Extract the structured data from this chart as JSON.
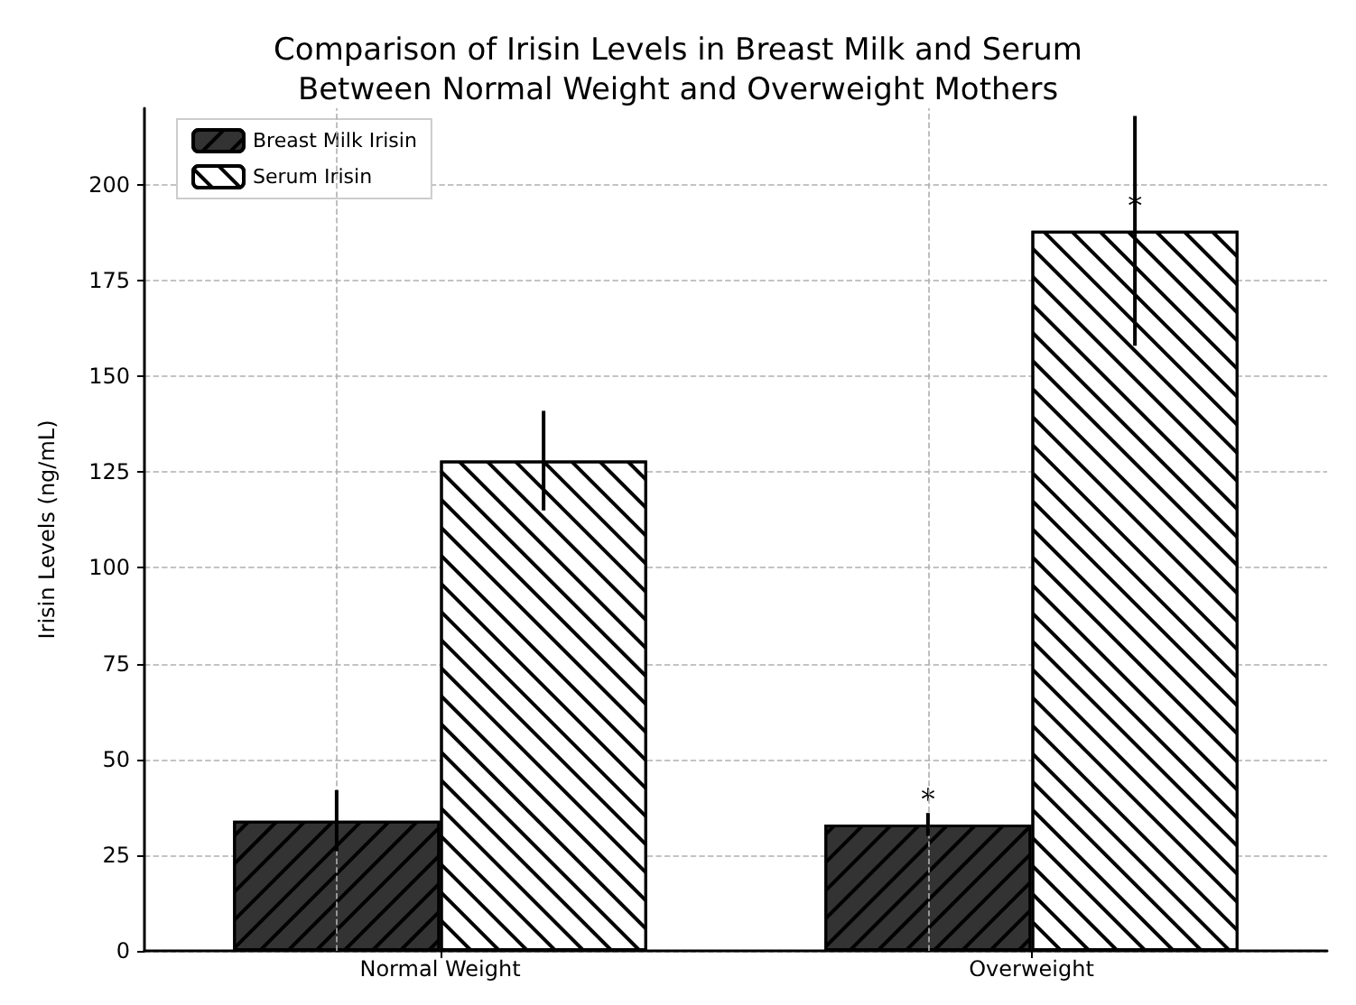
{
  "chart_data": {
    "type": "bar",
    "title": "Comparison of Irisin Levels in Breast Milk and Serum\nBetween Normal Weight and Overweight Mothers",
    "ylabel": "Irisin Levels (ng/mL)",
    "categories": [
      "Normal Weight",
      "Overweight"
    ],
    "series": [
      {
        "name": "Breast Milk Irisin",
        "color": "#333333",
        "values": [
          34,
          33
        ],
        "errors": [
          8,
          3
        ],
        "value_labels": [
          null,
          "*"
        ]
      },
      {
        "name": "Serum Irisin",
        "color": "#ffffff",
        "values": [
          128,
          188
        ],
        "errors": [
          13,
          30
        ],
        "value_labels": [
          null,
          "*"
        ]
      }
    ],
    "ylim": [
      0,
      220
    ],
    "yticks": [
      0,
      25,
      50,
      75,
      100,
      125,
      150,
      175,
      200
    ],
    "grid": true,
    "legend": "top left"
  }
}
